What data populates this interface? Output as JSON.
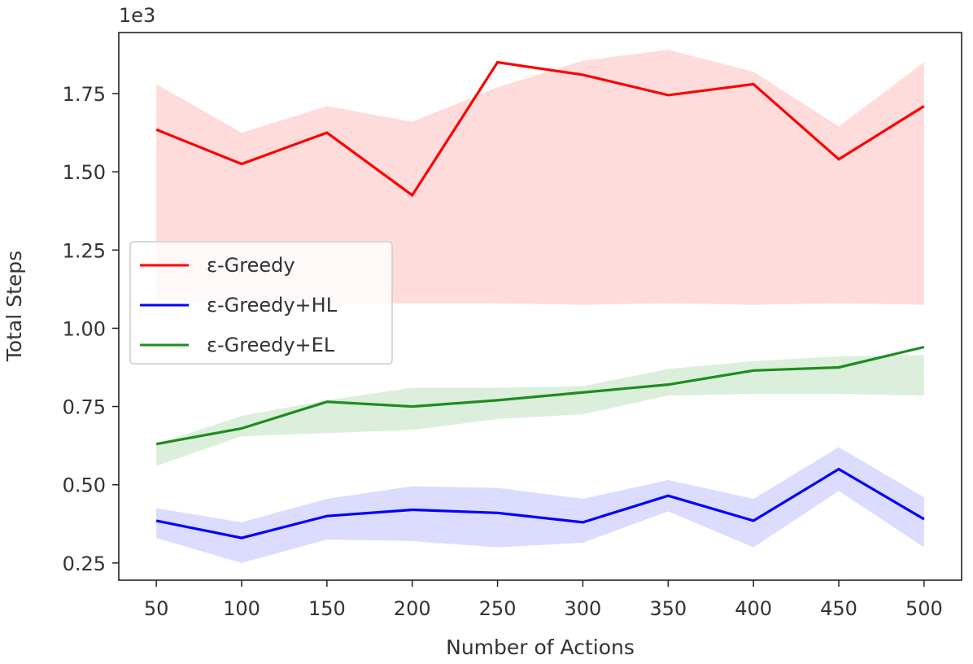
{
  "chart_data": {
    "type": "line",
    "title": "",
    "xlabel": "Number of Actions",
    "ylabel": "Total Steps",
    "y_scale_label": "1e3",
    "x": [
      50,
      100,
      150,
      200,
      250,
      300,
      350,
      400,
      450,
      500
    ],
    "x_ticks": [
      "50",
      "100",
      "150",
      "200",
      "250",
      "300",
      "350",
      "400",
      "450",
      "500"
    ],
    "xlim": [
      28,
      522
    ],
    "ylim": [
      0.195,
      1.945
    ],
    "y_ticks": [
      0.25,
      0.5,
      0.75,
      1.0,
      1.25,
      1.5,
      1.75
    ],
    "y_tick_labels": [
      "0.25",
      "0.50",
      "0.75",
      "1.00",
      "1.25",
      "1.50",
      "1.75"
    ],
    "legend_position": "center-left",
    "series": [
      {
        "name": "ε-Greedy",
        "color": "#ff0000",
        "band_color": "#ffdcdc",
        "values": [
          1.635,
          1.525,
          1.625,
          1.425,
          1.85,
          1.81,
          1.745,
          1.78,
          1.54,
          1.71
        ],
        "upper": [
          1.78,
          1.625,
          1.71,
          1.66,
          1.77,
          1.855,
          1.89,
          1.82,
          1.645,
          1.85
        ],
        "lower": [
          1.09,
          1.08,
          1.08,
          1.08,
          1.08,
          1.075,
          1.08,
          1.075,
          1.08,
          1.075
        ]
      },
      {
        "name": "ε-Greedy+HL",
        "color": "#0000ff",
        "band_color": "#dcdcff",
        "values": [
          0.385,
          0.33,
          0.4,
          0.42,
          0.41,
          0.38,
          0.465,
          0.385,
          0.55,
          0.39
        ],
        "upper": [
          0.425,
          0.38,
          0.455,
          0.495,
          0.49,
          0.455,
          0.515,
          0.455,
          0.62,
          0.46
        ],
        "lower": [
          0.33,
          0.25,
          0.325,
          0.32,
          0.3,
          0.315,
          0.415,
          0.3,
          0.48,
          0.3
        ]
      },
      {
        "name": "ε-Greedy+EL",
        "color": "#1e8c1e",
        "band_color": "#dcefdc",
        "values": [
          0.63,
          0.68,
          0.765,
          0.75,
          0.77,
          0.795,
          0.82,
          0.865,
          0.875,
          0.94
        ],
        "upper": [
          0.63,
          0.72,
          0.77,
          0.81,
          0.81,
          0.815,
          0.87,
          0.895,
          0.91,
          0.915
        ],
        "lower": [
          0.56,
          0.655,
          0.665,
          0.675,
          0.71,
          0.725,
          0.785,
          0.79,
          0.79,
          0.785
        ]
      }
    ]
  }
}
